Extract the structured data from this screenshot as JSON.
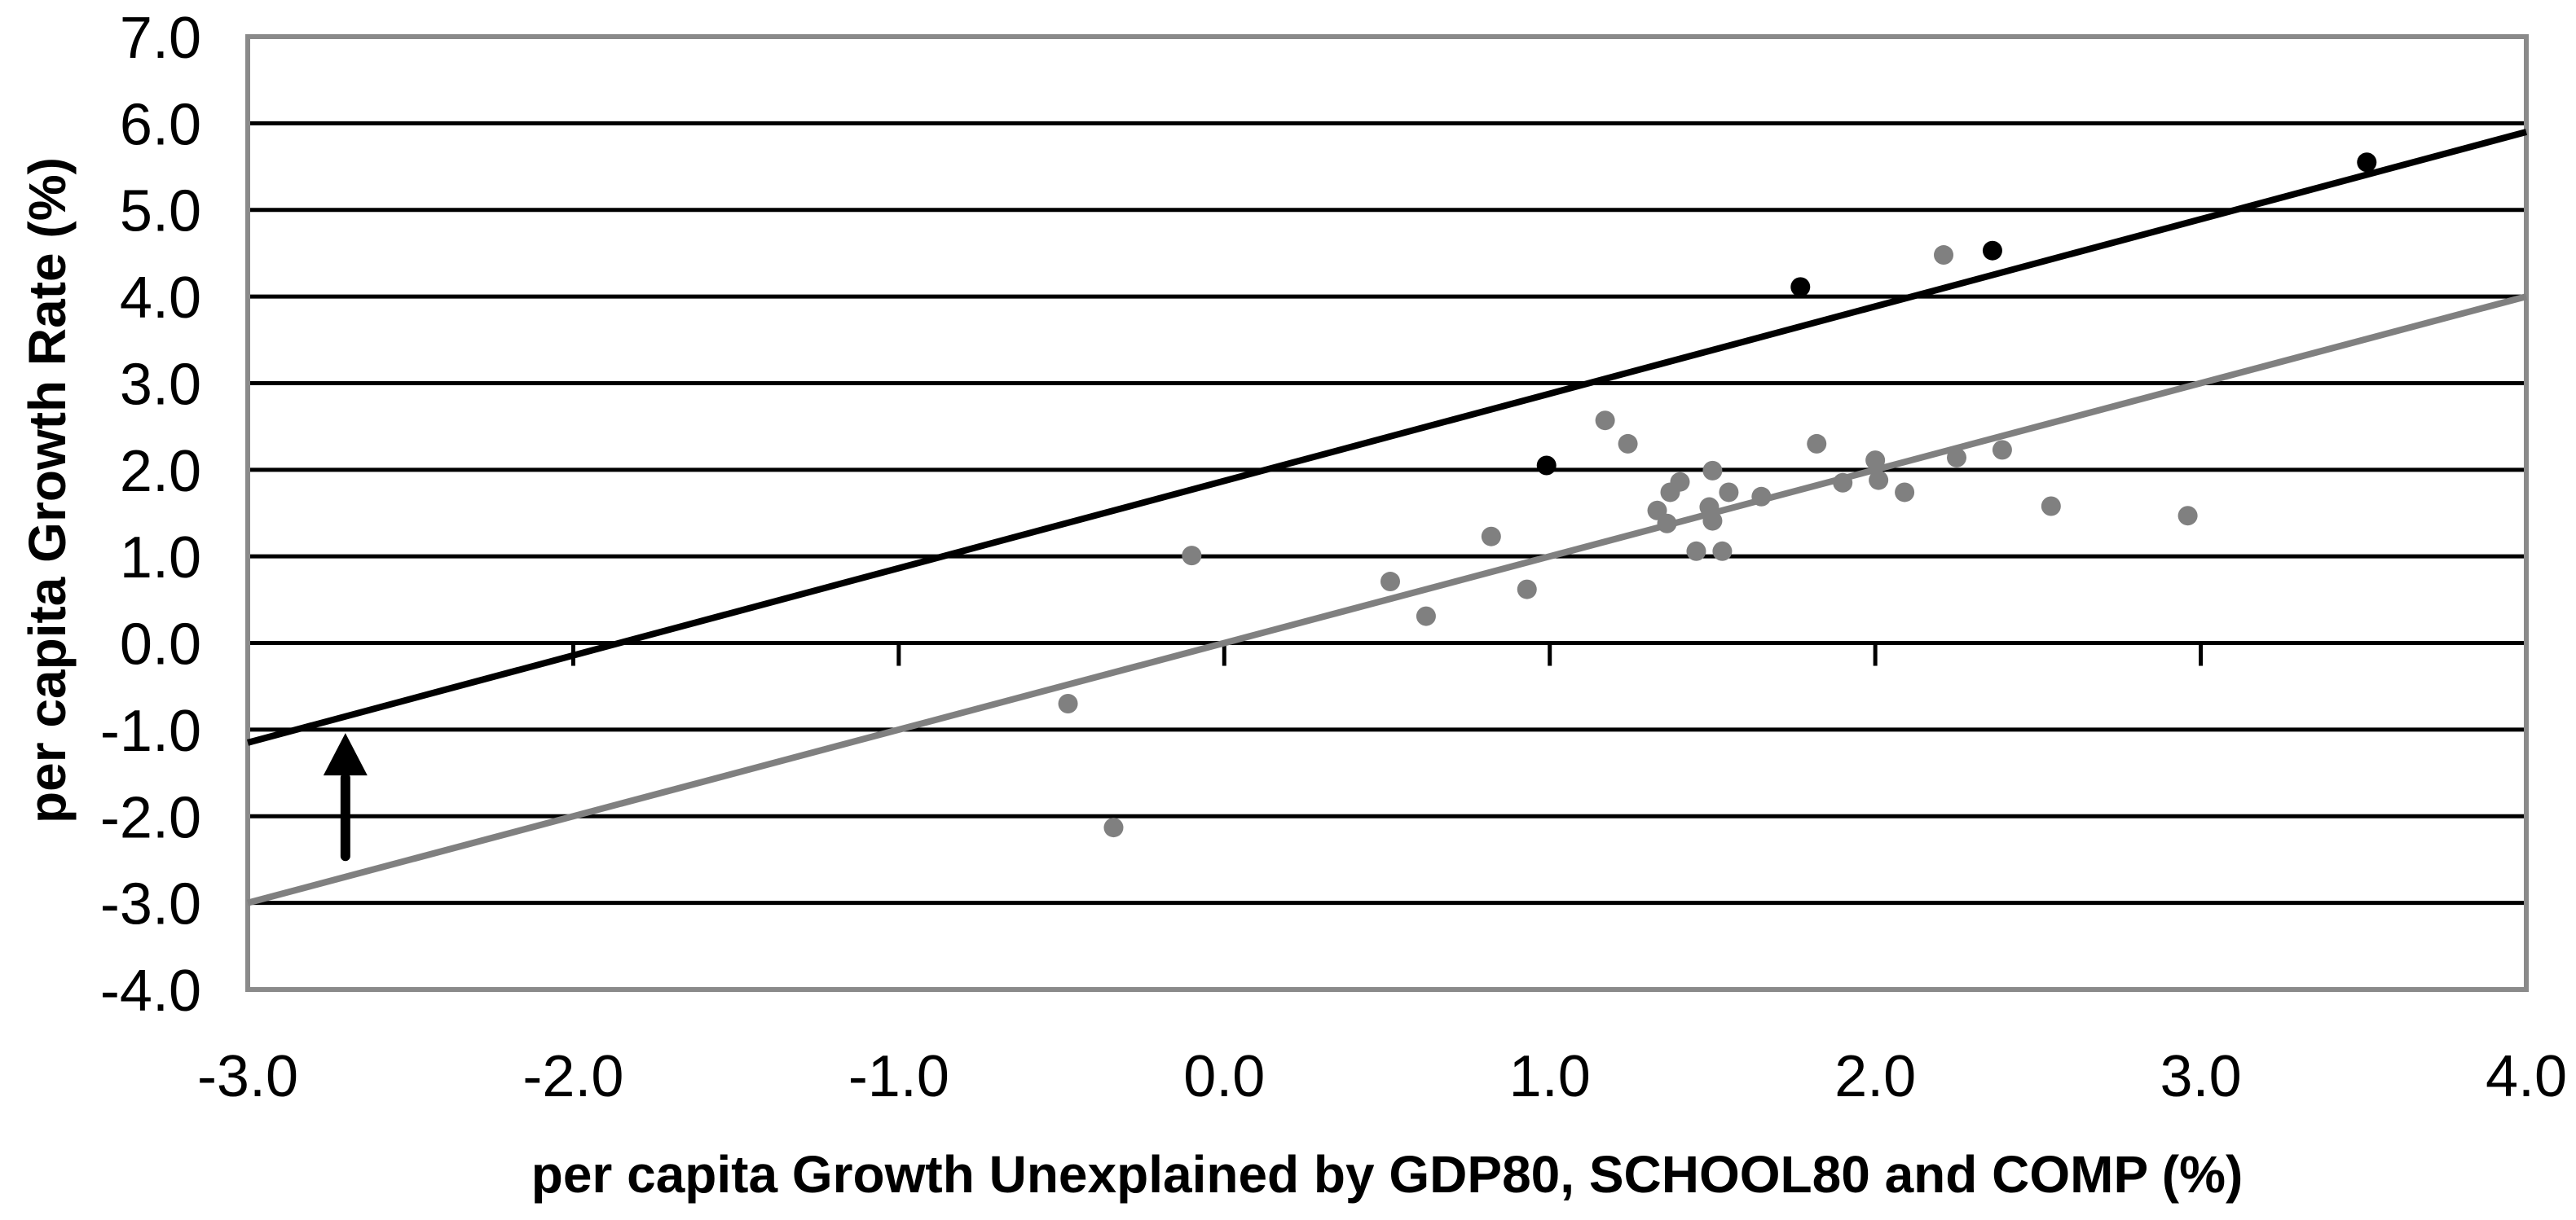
{
  "figure": {
    "background": "#ffffff"
  },
  "colors": {
    "gridline": "#000000",
    "plot_border": "#8a8a8a",
    "text": "#000000",
    "gray_series": "#808080",
    "black_series": "#000000"
  },
  "chart_data": {
    "type": "scatter",
    "title": "",
    "xlabel": "per capita Growth Unexplained by GDP80, SCHOOL80 and COMP (%)",
    "ylabel": "per capita Growth Rate (%)",
    "xlim": [
      -3.0,
      4.0
    ],
    "ylim": [
      -4.0,
      7.0
    ],
    "grid": "horizontal-only",
    "legend_position": "none",
    "x_ticks": [
      -3.0,
      -2.0,
      -1.0,
      0.0,
      1.0,
      2.0,
      3.0,
      4.0
    ],
    "x_tick_labels": [
      "-3.0",
      "-2.0",
      "-1.0",
      "0.0",
      "1.0",
      "2.0",
      "3.0",
      "4.0"
    ],
    "y_ticks": [
      7.0,
      6.0,
      5.0,
      4.0,
      3.0,
      2.0,
      1.0,
      0.0,
      -1.0,
      -2.0,
      -3.0,
      -4.0
    ],
    "y_tick_labels": [
      "7.0",
      "6.0",
      "5.0",
      "4.0",
      "3.0",
      "2.0",
      "1.0",
      "0.0",
      "-1.0",
      "-2.0",
      "-3.0",
      "-4.0"
    ],
    "x_axis_crosses_at_y": 0.0,
    "series": [
      {
        "name": "gray-scatter-points",
        "color": "#808080",
        "marker": "circle",
        "points": [
          [
            -0.48,
            -0.7
          ],
          [
            -0.34,
            -2.13
          ],
          [
            -0.1,
            1.01
          ],
          [
            0.51,
            0.71
          ],
          [
            0.62,
            0.31
          ],
          [
            0.82,
            1.23
          ],
          [
            0.93,
            0.62
          ],
          [
            1.17,
            2.57
          ],
          [
            1.24,
            2.3
          ],
          [
            1.33,
            1.53
          ],
          [
            1.36,
            1.38
          ],
          [
            1.37,
            1.74
          ],
          [
            1.4,
            1.86
          ],
          [
            1.45,
            1.06
          ],
          [
            1.49,
            1.57
          ],
          [
            1.5,
            1.99
          ],
          [
            1.5,
            1.41
          ],
          [
            1.53,
            1.06
          ],
          [
            1.55,
            1.74
          ],
          [
            1.65,
            1.69
          ],
          [
            1.82,
            2.3
          ],
          [
            1.9,
            1.85
          ],
          [
            2.0,
            2.11
          ],
          [
            2.01,
            1.88
          ],
          [
            2.09,
            1.74
          ],
          [
            2.21,
            4.48
          ],
          [
            2.25,
            2.14
          ],
          [
            2.39,
            2.23
          ],
          [
            2.54,
            1.58
          ],
          [
            2.96,
            1.47
          ]
        ]
      },
      {
        "name": "black-scatter-points",
        "color": "#000000",
        "marker": "circle",
        "points": [
          [
            0.99,
            2.05
          ],
          [
            1.77,
            4.11
          ],
          [
            2.36,
            4.53
          ],
          [
            3.51,
            5.55
          ]
        ]
      }
    ],
    "lines": [
      {
        "name": "black-trend-line",
        "color": "#000000",
        "from": [
          -3.0,
          -1.15
        ],
        "to": [
          4.0,
          5.9
        ]
      },
      {
        "name": "gray-identity-line",
        "color": "#808080",
        "from": [
          -3.0,
          -3.0
        ],
        "to": [
          4.0,
          4.0
        ]
      }
    ],
    "annotation_arrow": {
      "direction": "up",
      "x": -2.7,
      "y_tail": -2.46,
      "y_tip": -1.04,
      "color": "#000000"
    }
  }
}
